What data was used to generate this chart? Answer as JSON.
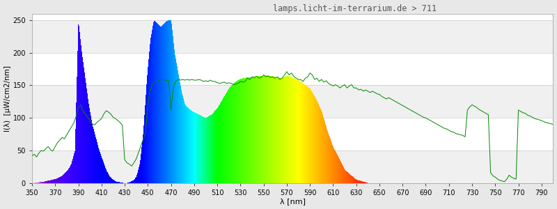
{
  "title": "lamps.licht-im-terrarium.de > 711",
  "xlabel": "λ [nm]",
  "ylabel": "I(λ)  [µW/cm2/nm]",
  "xlim": [
    350,
    800
  ],
  "ylim": [
    0,
    260
  ],
  "yticks": [
    0,
    50,
    100,
    150,
    200,
    250
  ],
  "xticks": [
    350,
    370,
    390,
    410,
    430,
    450,
    470,
    490,
    510,
    530,
    550,
    570,
    590,
    610,
    630,
    650,
    670,
    690,
    710,
    730,
    750,
    770,
    790
  ],
  "background_color": "#e8e8e8",
  "plot_bg_color": "#ffffff",
  "grid_color": "#cccccc",
  "title_color": "#555555",
  "green_line_color": "#008800",
  "spectrum_envelope": {
    "wavelengths": [
      350,
      355,
      360,
      365,
      370,
      375,
      378,
      381,
      384,
      387,
      390,
      393,
      396,
      399,
      402,
      405,
      408,
      411,
      414,
      417,
      420,
      423,
      426,
      429,
      432,
      435,
      438,
      440,
      443,
      446,
      449,
      452,
      455,
      458,
      461,
      464,
      467,
      470,
      473,
      476,
      479,
      482,
      485,
      488,
      491,
      494,
      497,
      500,
      505,
      510,
      515,
      520,
      525,
      530,
      535,
      540,
      545,
      550,
      555,
      560,
      565,
      570,
      575,
      580,
      585,
      590,
      595,
      600,
      605,
      610,
      620,
      630,
      640,
      650,
      660,
      670,
      680,
      690,
      700,
      710,
      720,
      730,
      740,
      750,
      760,
      770,
      780,
      790,
      800
    ],
    "heights": [
      0,
      1,
      2,
      4,
      6,
      10,
      15,
      20,
      30,
      50,
      250,
      200,
      160,
      120,
      90,
      70,
      50,
      35,
      20,
      10,
      5,
      2,
      1,
      0,
      0,
      2,
      5,
      10,
      30,
      80,
      160,
      220,
      250,
      245,
      240,
      245,
      250,
      250,
      200,
      170,
      140,
      120,
      115,
      110,
      108,
      105,
      102,
      100,
      105,
      115,
      130,
      145,
      155,
      160,
      162,
      163,
      164,
      165,
      165,
      163,
      161,
      165,
      162,
      158,
      152,
      145,
      130,
      110,
      80,
      55,
      20,
      5,
      0,
      0,
      0,
      0,
      0,
      0,
      0,
      0,
      0,
      0,
      0,
      0,
      0,
      0,
      0,
      0,
      0
    ]
  },
  "green_line": {
    "wavelengths": [
      350,
      352,
      354,
      356,
      358,
      360,
      362,
      364,
      366,
      368,
      370,
      372,
      374,
      376,
      378,
      380,
      382,
      384,
      386,
      388,
      390,
      392,
      394,
      396,
      398,
      400,
      402,
      404,
      406,
      408,
      410,
      412,
      414,
      416,
      418,
      420,
      422,
      424,
      426,
      428,
      430,
      432,
      434,
      436,
      438,
      440,
      442,
      444,
      446,
      448,
      450,
      452,
      454,
      456,
      458,
      460,
      462,
      464,
      466,
      468,
      470,
      472,
      474,
      476,
      478,
      480,
      482,
      484,
      486,
      488,
      490,
      492,
      494,
      496,
      498,
      500,
      502,
      504,
      506,
      508,
      510,
      512,
      514,
      516,
      518,
      520,
      522,
      524,
      526,
      528,
      530,
      532,
      534,
      536,
      538,
      540,
      542,
      544,
      546,
      548,
      550,
      552,
      554,
      556,
      558,
      560,
      562,
      564,
      566,
      568,
      570,
      572,
      574,
      576,
      578,
      580,
      582,
      584,
      586,
      588,
      590,
      592,
      594,
      596,
      598,
      600,
      602,
      604,
      606,
      608,
      610,
      612,
      614,
      616,
      618,
      620,
      622,
      624,
      626,
      628,
      630,
      632,
      634,
      636,
      638,
      640,
      642,
      644,
      646,
      648,
      650,
      652,
      654,
      656,
      658,
      660,
      662,
      664,
      666,
      668,
      670,
      672,
      674,
      676,
      678,
      680,
      682,
      684,
      686,
      688,
      690,
      692,
      694,
      696,
      698,
      700,
      702,
      704,
      706,
      708,
      710,
      712,
      714,
      716,
      718,
      720,
      722,
      724,
      726,
      728,
      730,
      732,
      734,
      736,
      738,
      740,
      742,
      744,
      746,
      748,
      750,
      752,
      754,
      756,
      758,
      760,
      762,
      764,
      766,
      768,
      770,
      772,
      774,
      776,
      778,
      780,
      782,
      784,
      786,
      788,
      790,
      792,
      794,
      796,
      798,
      800
    ],
    "intensities": [
      42,
      44,
      40,
      46,
      50,
      49,
      53,
      56,
      51,
      49,
      56,
      62,
      66,
      70,
      68,
      74,
      80,
      86,
      92,
      102,
      116,
      120,
      111,
      106,
      101,
      96,
      91,
      89,
      93,
      96,
      99,
      106,
      111,
      109,
      106,
      101,
      99,
      96,
      93,
      89,
      36,
      31,
      29,
      26,
      31,
      37,
      47,
      57,
      67,
      77,
      122,
      142,
      152,
      156,
      156,
      159,
      159,
      158,
      158,
      157,
      112,
      146,
      156,
      159,
      158,
      159,
      158,
      159,
      158,
      159,
      158,
      158,
      159,
      158,
      156,
      157,
      156,
      158,
      156,
      156,
      154,
      153,
      154,
      155,
      153,
      154,
      153,
      151,
      152,
      153,
      156,
      155,
      156,
      161,
      159,
      163,
      162,
      164,
      161,
      162,
      166,
      163,
      164,
      162,
      163,
      161,
      163,
      159,
      161,
      166,
      171,
      166,
      169,
      164,
      161,
      159,
      159,
      156,
      161,
      163,
      169,
      166,
      159,
      161,
      156,
      159,
      155,
      157,
      153,
      151,
      149,
      151,
      149,
      146,
      149,
      151,
      146,
      149,
      151,
      146,
      146,
      143,
      144,
      141,
      143,
      141,
      139,
      141,
      139,
      137,
      136,
      133,
      131,
      129,
      131,
      129,
      127,
      125,
      123,
      121,
      119,
      117,
      115,
      113,
      111,
      109,
      107,
      105,
      103,
      101,
      100,
      98,
      96,
      94,
      92,
      90,
      88,
      86,
      84,
      83,
      81,
      79,
      78,
      76,
      75,
      74,
      73,
      71,
      112,
      117,
      120,
      118,
      116,
      113,
      111,
      109,
      107,
      105,
      16,
      11,
      9,
      6,
      4,
      3,
      2,
      6,
      12,
      9,
      7,
      6,
      112,
      110,
      108,
      107,
      104,
      103,
      101,
      99,
      98,
      97,
      96,
      94,
      93,
      92,
      91,
      90
    ]
  }
}
